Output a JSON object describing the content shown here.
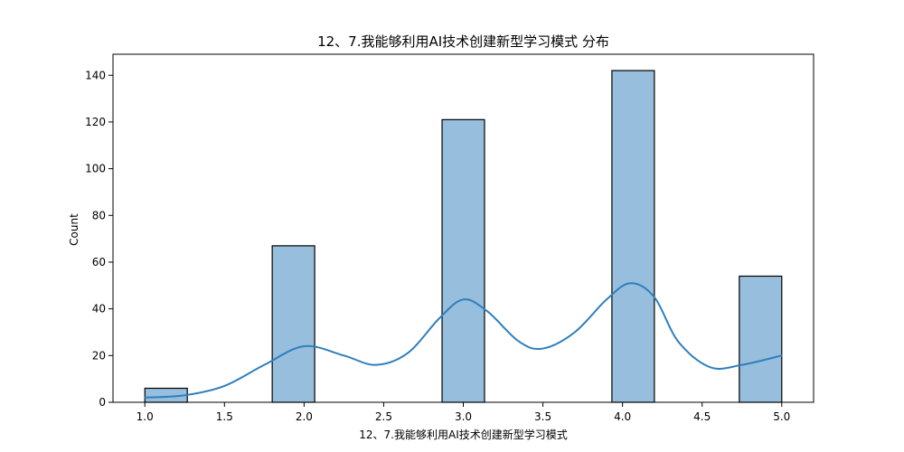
{
  "chart_data": {
    "type": "bar",
    "title": "12、7.我能够利用AI技术创建新型学习模式 分布",
    "xlabel": "12、7.我能够利用AI技术创建新型学习模式",
    "ylabel": "Count",
    "xlim": [
      0.8,
      5.2
    ],
    "ylim": [
      0,
      149
    ],
    "x_ticks": [
      1.0,
      1.5,
      2.0,
      2.5,
      3.0,
      3.5,
      4.0,
      4.5,
      5.0
    ],
    "x_tick_labels": [
      "1.0",
      "1.5",
      "2.0",
      "2.5",
      "3.0",
      "3.5",
      "4.0",
      "4.5",
      "5.0"
    ],
    "y_ticks": [
      0,
      20,
      40,
      60,
      80,
      100,
      120,
      140
    ],
    "y_tick_labels": [
      "0",
      "20",
      "40",
      "60",
      "80",
      "100",
      "120",
      "140"
    ],
    "bins": [
      {
        "x0": 1.0,
        "x1": 1.2667,
        "count": 6
      },
      {
        "x0": 1.8,
        "x1": 2.0667,
        "count": 67
      },
      {
        "x0": 2.8667,
        "x1": 3.1333,
        "count": 121
      },
      {
        "x0": 3.9333,
        "x1": 4.2,
        "count": 142
      },
      {
        "x0": 4.7333,
        "x1": 5.0,
        "count": 54
      }
    ],
    "kde": {
      "x": [
        1.0,
        1.25,
        1.5,
        1.75,
        2.0,
        2.25,
        2.45,
        2.65,
        2.85,
        3.0,
        3.15,
        3.35,
        3.5,
        3.7,
        3.9,
        4.05,
        4.2,
        4.35,
        4.55,
        4.75,
        5.0
      ],
      "y": [
        2,
        3,
        7,
        16,
        24,
        20,
        16,
        21,
        36,
        44,
        39,
        26,
        23,
        30,
        44,
        51,
        45,
        26,
        15,
        16,
        20
      ]
    },
    "colors": {
      "bar_fill": "#97bedc",
      "bar_edge": "#000000",
      "kde_line": "#2f7fbd"
    },
    "grid": false,
    "legend": "none"
  }
}
